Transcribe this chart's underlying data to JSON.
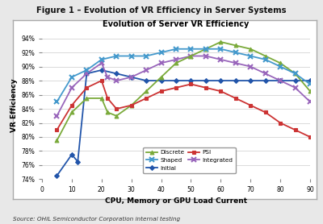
{
  "title_outer": "Figure 1 – Evolution of VR Efficiency in Server Systems",
  "title_inner": "Evolution of Server VR Efficiency",
  "xlabel": "CPU, Memory or GPU Load Current",
  "ylabel": "VR Efficiency",
  "source": "Source: OHiL Semiconductor Corporation internal testing",
  "xlim": [
    0,
    90
  ],
  "ylim": [
    74,
    95
  ],
  "xticks": [
    0,
    10,
    20,
    30,
    40,
    50,
    60,
    70,
    80,
    90
  ],
  "yticks": [
    74,
    76,
    78,
    80,
    82,
    84,
    86,
    88,
    90,
    92,
    94
  ],
  "ytick_labels": [
    "74%",
    "76%",
    "78%",
    "80%",
    "82%",
    "84%",
    "86%",
    "88%",
    "90%",
    "92%",
    "94%"
  ],
  "series": {
    "Discrete": {
      "x": [
        5,
        10,
        15,
        20,
        22,
        25,
        30,
        35,
        40,
        45,
        50,
        55,
        60,
        65,
        70,
        75,
        80,
        85,
        90
      ],
      "y": [
        79.5,
        83.5,
        85.5,
        85.5,
        83.5,
        83.0,
        84.5,
        86.5,
        88.5,
        90.5,
        91.5,
        92.5,
        93.5,
        93.0,
        92.5,
        91.5,
        90.5,
        89.0,
        86.5
      ],
      "color": "#7aaa3a",
      "marker": "^",
      "markersize": 3.5,
      "linewidth": 1.3,
      "zorder": 3
    },
    "Shaped": {
      "x": [
        5,
        10,
        15,
        20,
        25,
        30,
        35,
        40,
        45,
        50,
        55,
        60,
        65,
        70,
        75,
        80,
        85,
        90
      ],
      "y": [
        85.0,
        88.5,
        89.5,
        91.0,
        91.5,
        91.5,
        91.5,
        92.0,
        92.5,
        92.5,
        92.5,
        92.5,
        92.0,
        91.5,
        91.0,
        90.0,
        89.0,
        87.5
      ],
      "color": "#4499cc",
      "marker": "x",
      "markersize": 4.5,
      "linewidth": 1.3,
      "zorder": 4
    },
    "Initial": {
      "x": [
        5,
        10,
        12,
        15,
        20,
        25,
        30,
        35,
        40,
        45,
        50,
        55,
        60,
        65,
        70,
        75,
        80,
        85,
        90
      ],
      "y": [
        74.5,
        77.5,
        76.5,
        89.0,
        89.5,
        89.0,
        88.5,
        88.0,
        88.0,
        88.0,
        88.0,
        88.0,
        88.0,
        88.0,
        88.0,
        88.0,
        88.0,
        88.0,
        88.0
      ],
      "color": "#2255aa",
      "marker": "D",
      "markersize": 3.0,
      "linewidth": 1.3,
      "zorder": 2
    },
    "PSI": {
      "x": [
        5,
        10,
        15,
        20,
        22,
        25,
        30,
        35,
        40,
        45,
        50,
        55,
        60,
        65,
        70,
        75,
        80,
        85,
        90
      ],
      "y": [
        81.0,
        84.5,
        87.0,
        88.0,
        85.5,
        84.0,
        84.5,
        85.5,
        86.5,
        87.0,
        87.5,
        87.0,
        86.5,
        85.5,
        84.5,
        83.5,
        82.0,
        81.0,
        80.0
      ],
      "color": "#cc3333",
      "marker": "s",
      "markersize": 3.5,
      "linewidth": 1.3,
      "zorder": 3
    },
    "Integrated": {
      "x": [
        5,
        10,
        15,
        20,
        22,
        25,
        30,
        35,
        40,
        45,
        50,
        55,
        60,
        65,
        70,
        75,
        80,
        85,
        90
      ],
      "y": [
        83.0,
        87.0,
        89.0,
        90.5,
        88.5,
        88.0,
        88.5,
        89.5,
        90.5,
        91.0,
        91.5,
        91.5,
        91.0,
        90.5,
        90.0,
        89.0,
        88.0,
        87.0,
        85.0
      ],
      "color": "#9966bb",
      "marker": "x",
      "markersize": 4.5,
      "linewidth": 1.3,
      "zorder": 2
    }
  },
  "outer_bg": "#e8e8e8",
  "inner_bg": "#ffffff",
  "border_color": "#aaaaaa"
}
